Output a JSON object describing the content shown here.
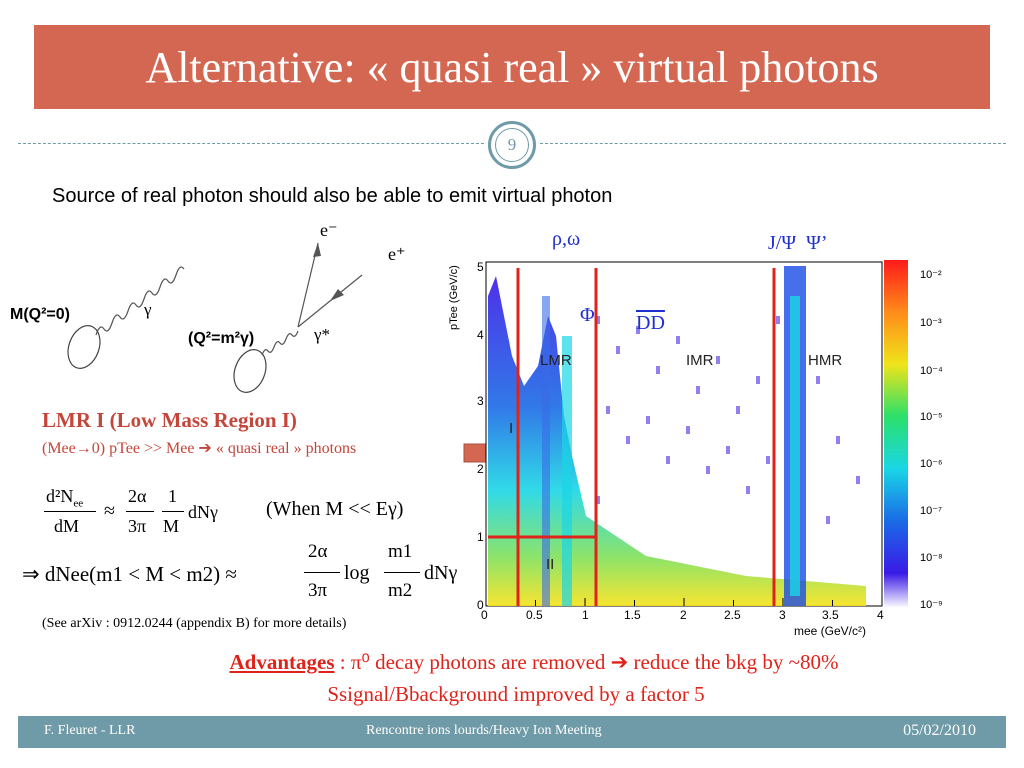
{
  "title": "Alternative: « quasi real » virtual photons",
  "page_number": "9",
  "subtitle": "Source of real photon should also be able to emit virtual photon",
  "diagram": {
    "left_label": "M(Q²=0)",
    "gamma": "γ",
    "right_label": "(Q²=m²γ)",
    "gamma_star": "γ*",
    "e_minus": "e⁻",
    "e_plus": "e⁺"
  },
  "plot_labels": {
    "rho_omega": "ρ,ω",
    "phi": "Φ",
    "dd": "DD",
    "jpsi": "J/Ψ  Ψ’",
    "lmr": "LMR",
    "imr": "IMR",
    "hmr": "HMR",
    "region_i": "I",
    "region_ii": "II",
    "y_axis": "pTee (GeV/c)",
    "x_axis": "mee (GeV/c²)",
    "x_ticks": [
      "0",
      "0.5",
      "1",
      "1.5",
      "2",
      "2.5",
      "3",
      "3.5",
      "4"
    ],
    "y_ticks": [
      "0",
      "1",
      "2",
      "3",
      "4",
      "5"
    ],
    "z_ticks": [
      "10⁻²",
      "10⁻³",
      "10⁻⁴",
      "10⁻⁵",
      "10⁻⁶",
      "10⁻⁷",
      "10⁻⁸",
      "10⁻⁹"
    ]
  },
  "lmr": {
    "title": "LMR I (Low Mass Region I)",
    "subtitle": "(Mee→0) pTee >> Mee ➔ « quasi real » photons"
  },
  "formula": {
    "line1_left": "d²Nee / dM",
    "approx": "≈",
    "two_alpha": "2α",
    "three_pi": "3π",
    "one": "1",
    "m": "M",
    "dn_gamma": "dNγ",
    "when": "(When M << Eγ)",
    "line2_prefix": "⇒ dNee(m1 < M < m2) ≈",
    "log": "log",
    "m1": "m1",
    "m2": "m2"
  },
  "note": "(See arXiv : 0912.0244 (appendix B) for more details)",
  "advantages": {
    "key": "Advantages",
    "line1": " : π⁰ decay photons are removed ➔ reduce the bkg by ~80%",
    "line2": "Ssignal/Bbackground improved by a factor 5"
  },
  "footer": {
    "author": "F. Fleuret - LLR",
    "event": "Rencontre ions lourds/Heavy Ion Meeting",
    "date": "05/02/2010"
  },
  "colors": {
    "title_bar": "#d46751",
    "accent_teal": "#6f9aa7",
    "red_text": "#c4463a",
    "adv_red": "#e0231a",
    "label_blue": "#1f2fd1"
  }
}
